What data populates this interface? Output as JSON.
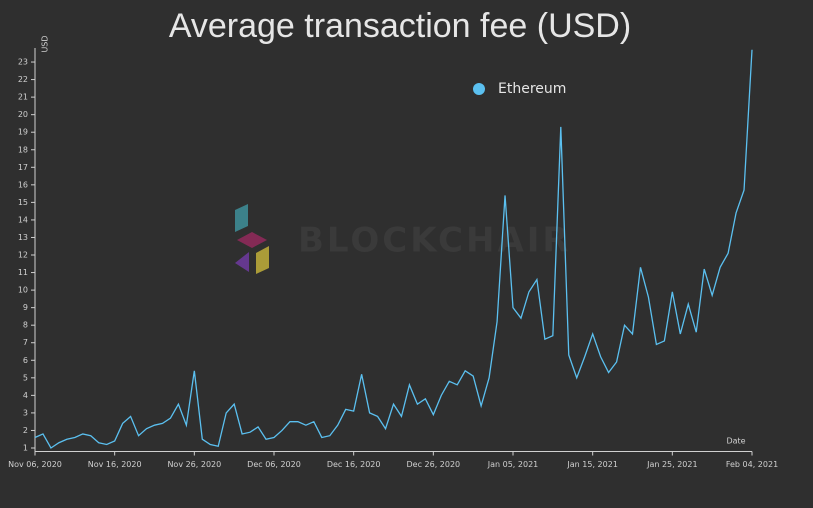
{
  "watermark": "BLOCKCHAIR",
  "chart_data": {
    "type": "line",
    "title": "Average transaction fee (USD)",
    "y_label": "USD",
    "x_label": "Date",
    "x": [
      "2020-11-06",
      "2020-11-07",
      "2020-11-08",
      "2020-11-09",
      "2020-11-10",
      "2020-11-11",
      "2020-11-12",
      "2020-11-13",
      "2020-11-14",
      "2020-11-15",
      "2020-11-16",
      "2020-11-17",
      "2020-11-18",
      "2020-11-19",
      "2020-11-20",
      "2020-11-21",
      "2020-11-22",
      "2020-11-23",
      "2020-11-24",
      "2020-11-25",
      "2020-11-26",
      "2020-11-27",
      "2020-11-28",
      "2020-11-29",
      "2020-11-30",
      "2020-12-01",
      "2020-12-02",
      "2020-12-03",
      "2020-12-04",
      "2020-12-05",
      "2020-12-06",
      "2020-12-07",
      "2020-12-08",
      "2020-12-09",
      "2020-12-10",
      "2020-12-11",
      "2020-12-12",
      "2020-12-13",
      "2020-12-14",
      "2020-12-15",
      "2020-12-16",
      "2020-12-17",
      "2020-12-18",
      "2020-12-19",
      "2020-12-20",
      "2020-12-21",
      "2020-12-22",
      "2020-12-23",
      "2020-12-24",
      "2020-12-25",
      "2020-12-26",
      "2020-12-27",
      "2020-12-28",
      "2020-12-29",
      "2020-12-30",
      "2020-12-31",
      "2021-01-01",
      "2021-01-02",
      "2021-01-03",
      "2021-01-04",
      "2021-01-05",
      "2021-01-06",
      "2021-01-07",
      "2021-01-08",
      "2021-01-09",
      "2021-01-10",
      "2021-01-11",
      "2021-01-12",
      "2021-01-13",
      "2021-01-14",
      "2021-01-15",
      "2021-01-16",
      "2021-01-17",
      "2021-01-18",
      "2021-01-19",
      "2021-01-20",
      "2021-01-21",
      "2021-01-22",
      "2021-01-23",
      "2021-01-24",
      "2021-01-25",
      "2021-01-26",
      "2021-01-27",
      "2021-01-28",
      "2021-01-29",
      "2021-01-30",
      "2021-01-31",
      "2021-02-01",
      "2021-02-02",
      "2021-02-03",
      "2021-02-04"
    ],
    "series": [
      {
        "name": "Ethereum",
        "color": "#5bc0f0",
        "values": [
          1.6,
          1.8,
          1.0,
          1.3,
          1.5,
          1.6,
          1.8,
          1.7,
          1.3,
          1.2,
          1.4,
          2.4,
          2.8,
          1.7,
          2.1,
          2.3,
          2.4,
          2.7,
          3.5,
          2.3,
          5.4,
          1.5,
          1.2,
          1.1,
          3.0,
          3.5,
          1.8,
          1.9,
          2.2,
          1.5,
          1.6,
          2.0,
          2.5,
          2.5,
          2.3,
          2.5,
          1.6,
          1.7,
          2.3,
          3.2,
          3.1,
          5.2,
          3.0,
          2.8,
          2.1,
          3.5,
          2.8,
          4.6,
          3.5,
          3.8,
          2.9,
          4.0,
          4.8,
          4.6,
          5.4,
          5.1,
          3.4,
          5.0,
          8.2,
          15.4,
          9.0,
          8.4,
          9.9,
          10.6,
          7.2,
          7.4,
          19.3,
          6.3,
          5.0,
          6.2,
          7.5,
          6.2,
          5.3,
          5.9,
          8.0,
          7.5,
          11.3,
          9.6,
          6.9,
          7.1,
          9.9,
          7.5,
          9.2,
          7.6,
          11.2,
          9.7,
          11.3,
          12.1,
          14.4,
          15.7,
          23.7
        ]
      }
    ],
    "xlim": [
      "2020-11-06",
      "2021-02-04"
    ],
    "xticks": [
      {
        "value": "2020-11-06",
        "label": "Nov 06, 2020"
      },
      {
        "value": "2020-11-16",
        "label": "Nov 16, 2020"
      },
      {
        "value": "2020-11-26",
        "label": "Nov 26, 2020"
      },
      {
        "value": "2020-12-06",
        "label": "Dec 06, 2020"
      },
      {
        "value": "2020-12-16",
        "label": "Dec 16, 2020"
      },
      {
        "value": "2020-12-26",
        "label": "Dec 26, 2020"
      },
      {
        "value": "2021-01-05",
        "label": "Jan 05, 2021"
      },
      {
        "value": "2021-01-15",
        "label": "Jan 15, 2021"
      },
      {
        "value": "2021-01-25",
        "label": "Jan 25, 2021"
      },
      {
        "value": "2021-02-04",
        "label": "Feb 04, 2021"
      }
    ],
    "ylim": [
      0.8,
      23.8
    ],
    "yticks": [
      1,
      2,
      3,
      4,
      5,
      6,
      7,
      8,
      9,
      10,
      11,
      12,
      13,
      14,
      15,
      16,
      17,
      18,
      19,
      20,
      21,
      22,
      23
    ],
    "legend": "top-right"
  }
}
